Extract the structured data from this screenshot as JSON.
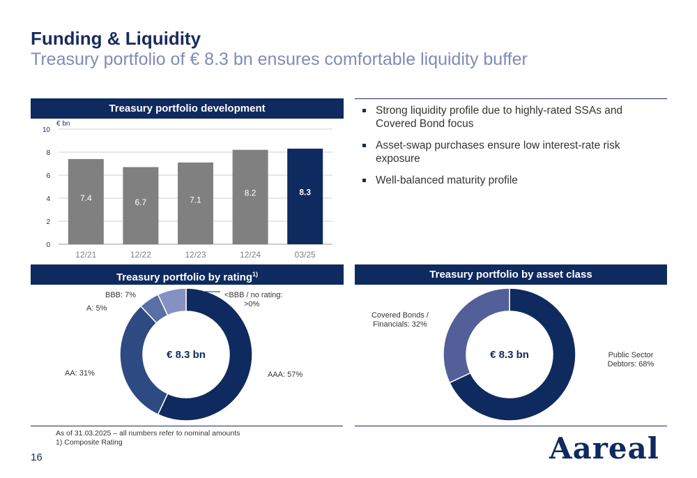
{
  "header": {
    "title": "Funding & Liquidity",
    "subtitle": "Treasury portfolio of € 8.3 bn ensures comfortable liquidity buffer"
  },
  "panels": {
    "development": "Treasury portfolio development",
    "rating": "Treasury portfolio by rating",
    "rating_sup": "1)",
    "asset_class": "Treasury portfolio by asset class"
  },
  "bullets": [
    "Strong liquidity profile due to highly-rated SSAs and Covered Bond focus",
    "Asset-swap purchases ensure low interest-rate risk exposure",
    "Well-balanced maturity profile"
  ],
  "chart_data": [
    {
      "type": "bar",
      "title": "Treasury portfolio development",
      "ylabel": "€ bn",
      "categories": [
        "12/21",
        "12/22",
        "12/23",
        "12/24",
        "03/25"
      ],
      "values": [
        7.4,
        6.7,
        7.1,
        8.2,
        8.3
      ],
      "value_labels": [
        "7.4",
        "6.7",
        "7.1",
        "8.2",
        "8.3"
      ],
      "ylim": [
        0,
        10
      ],
      "yticks": [
        "0",
        "2",
        "4",
        "6",
        "8",
        "10"
      ],
      "grid": true,
      "colors": [
        "#808080",
        "#808080",
        "#808080",
        "#808080",
        "#0f2a5e"
      ]
    },
    {
      "type": "pie",
      "title": "Treasury portfolio by rating",
      "center_label": "€ 8.3 bn",
      "slices": [
        {
          "label": "AAA: 57%",
          "value": 57,
          "color": "#0f2a5e"
        },
        {
          "label": "AA: 31%",
          "value": 31,
          "color": "#2e4a83"
        },
        {
          "label": "A: 5%",
          "value": 5,
          "color": "#5a6fa6"
        },
        {
          "label": "BBB: 7%",
          "value": 7,
          "color": "#8591c0"
        },
        {
          "label": "<BBB / no rating: >0%",
          "value": 0,
          "color": "#ffffff"
        }
      ]
    },
    {
      "type": "pie",
      "title": "Treasury portfolio by asset class",
      "center_label": "€ 8.3 bn",
      "slices": [
        {
          "label": "Public Sector Debtors: 68%",
          "value": 68,
          "color": "#0f2a5e"
        },
        {
          "label": "Covered Bonds / Financials: 32%",
          "value": 32,
          "color": "#525f98"
        }
      ]
    }
  ],
  "labels": {
    "rating_bbb": "BBB: 7%",
    "rating_a": "A: 5%",
    "rating_aa": "AA: 31%",
    "rating_aaa": "AAA: 57%",
    "rating_below_line1": "<BBB / no rating:",
    "rating_below_line2": ">0%",
    "covered_line1": "Covered Bonds /",
    "covered_line2": "Financials: 32%",
    "public_line1": "Public Sector",
    "public_line2": "Debtors: 68%",
    "center": "€ 8.3 bn"
  },
  "footer": {
    "note_line1": "As of 31.03.2025 – all numbers refer to nominal amounts",
    "note_line2": "1)  Composite Rating",
    "page_number": "16",
    "logo": "Aareal"
  }
}
